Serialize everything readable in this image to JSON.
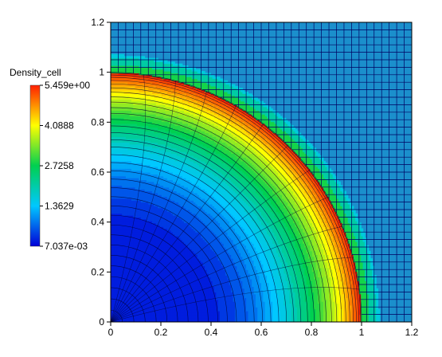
{
  "chart_data": {
    "type": "heatmap",
    "title": "",
    "xlabel": "",
    "ylabel": "",
    "xlim": [
      0,
      1.2
    ],
    "ylim": [
      0,
      1.2
    ],
    "x_ticks": [
      "0",
      "0.2",
      "0.4",
      "0.6",
      "0.8",
      "1",
      "1.2"
    ],
    "y_ticks": [
      "0",
      "0.2",
      "0.4",
      "0.6",
      "0.8",
      "1",
      "1.2"
    ],
    "grid_cells": 40,
    "shock_radius": 1.0,
    "colorbar": {
      "title": "Density_cell",
      "min": 0.007037,
      "max": 5.459,
      "labels": [
        "5.459e+00",
        "4.0888",
        "2.7258",
        "1.3629",
        "7.037e-03"
      ],
      "colors": [
        "#0000d8",
        "#00c8ff",
        "#00d050",
        "#ffff00",
        "#ff2000"
      ]
    },
    "ambient_color": "#1b8fcc",
    "mesh_line_color": "#000060"
  }
}
